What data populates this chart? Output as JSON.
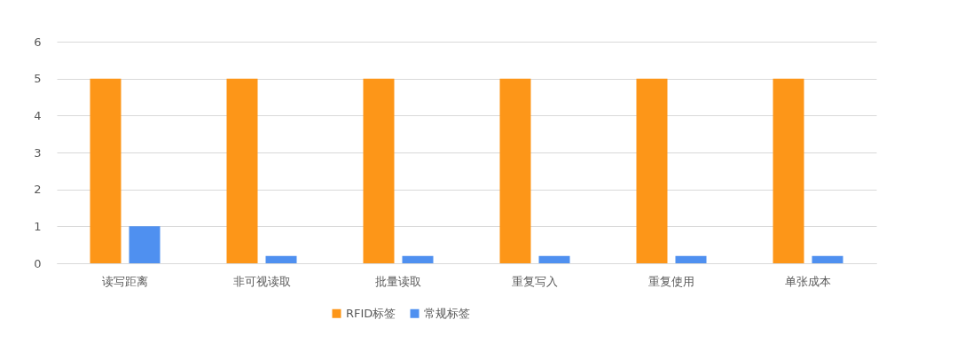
{
  "chart_data": {
    "type": "bar",
    "categories": [
      "读写距离",
      "非可视读取",
      "批量读取",
      "重复写入",
      "重复使用",
      "单张成本"
    ],
    "series": [
      {
        "name": "RFID标签",
        "color": "#fd9618",
        "values": [
          5,
          5,
          5,
          5,
          5,
          5
        ]
      },
      {
        "name": "常规标签",
        "color": "#4f90f0",
        "values": [
          1,
          0.2,
          0.2,
          0.2,
          0.2,
          0.2
        ]
      }
    ],
    "ylim": [
      0,
      6
    ],
    "yticks": [
      0,
      1,
      2,
      3,
      4,
      5,
      6
    ],
    "grid": "y",
    "legend": "bottom"
  }
}
